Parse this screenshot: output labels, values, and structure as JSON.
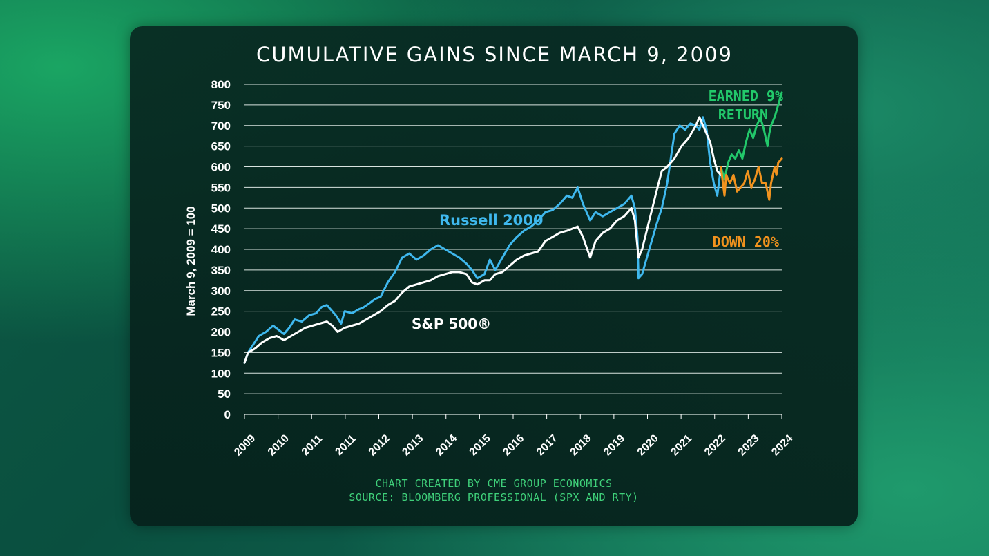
{
  "colors": {
    "russell": "#3fb8ee",
    "sp500": "#ffffff",
    "earned": "#22c86a",
    "down": "#f0921e",
    "grid": "#d9e4e0",
    "footer": "#3fd07a"
  },
  "chart_data": {
    "type": "line",
    "title": "CUMULATIVE GAINS SINCE MARCH 9, 2009",
    "ylabel": "March 9, 2009 = 100",
    "xlabel": "",
    "ylim": [
      0,
      800
    ],
    "yticks": [
      0,
      50,
      100,
      150,
      200,
      250,
      300,
      350,
      400,
      450,
      500,
      550,
      600,
      650,
      700,
      750,
      800
    ],
    "xlim": [
      2009.2,
      2024.2
    ],
    "xtick_labels": [
      "2009",
      "2010",
      "2011",
      "2011",
      "2012",
      "2013",
      "2014",
      "2015",
      "2016",
      "2017",
      "2018",
      "2019",
      "2020",
      "2021",
      "2022",
      "2023",
      "2024"
    ],
    "grid": true,
    "series": [
      {
        "name": "Russell 2000",
        "color": "#3fb8ee",
        "x": [
          2009.2,
          2009.3,
          2009.45,
          2009.6,
          2009.8,
          2010.0,
          2010.15,
          2010.3,
          2010.45,
          2010.6,
          2010.8,
          2011.0,
          2011.2,
          2011.35,
          2011.5,
          2011.6,
          2011.75,
          2011.9,
          2012.0,
          2012.2,
          2012.4,
          2012.5,
          2012.7,
          2012.85,
          2013.0,
          2013.2,
          2013.4,
          2013.6,
          2013.8,
          2014.0,
          2014.2,
          2014.4,
          2014.6,
          2014.8,
          2015.0,
          2015.2,
          2015.4,
          2015.55,
          2015.7,
          2015.9,
          2016.05,
          2016.2,
          2016.4,
          2016.6,
          2016.8,
          2017.0,
          2017.2,
          2017.4,
          2017.6,
          2017.8,
          2018.0,
          2018.2,
          2018.35,
          2018.5,
          2018.65,
          2018.85,
          2019.0,
          2019.2,
          2019.4,
          2019.6,
          2019.8,
          2020.0,
          2020.1,
          2020.17,
          2020.2,
          2020.3,
          2020.5,
          2020.7,
          2020.85,
          2021.0,
          2021.1,
          2021.2,
          2021.35,
          2021.5,
          2021.65,
          2021.8,
          2021.9,
          2022.0,
          2022.1,
          2022.2,
          2022.3,
          2022.4,
          2022.5
        ],
        "y": [
          125,
          150,
          170,
          190,
          200,
          215,
          205,
          195,
          210,
          230,
          225,
          240,
          245,
          260,
          265,
          255,
          240,
          220,
          250,
          245,
          255,
          258,
          270,
          280,
          285,
          320,
          345,
          380,
          390,
          375,
          385,
          400,
          410,
          400,
          390,
          380,
          365,
          350,
          330,
          340,
          375,
          350,
          380,
          410,
          430,
          445,
          455,
          470,
          490,
          495,
          510,
          530,
          525,
          550,
          510,
          470,
          490,
          480,
          490,
          500,
          510,
          530,
          500,
          430,
          330,
          340,
          400,
          460,
          500,
          560,
          620,
          680,
          700,
          690,
          705,
          700,
          690,
          720,
          690,
          610,
          560,
          530,
          600
        ]
      },
      {
        "name": "S&P 500®",
        "color": "#ffffff",
        "x": [
          2009.2,
          2009.3,
          2009.5,
          2009.7,
          2009.9,
          2010.1,
          2010.3,
          2010.5,
          2010.7,
          2010.9,
          2011.1,
          2011.3,
          2011.5,
          2011.65,
          2011.8,
          2012.0,
          2012.2,
          2012.4,
          2012.6,
          2012.8,
          2013.0,
          2013.2,
          2013.4,
          2013.6,
          2013.8,
          2014.0,
          2014.2,
          2014.4,
          2014.6,
          2014.8,
          2015.0,
          2015.2,
          2015.4,
          2015.55,
          2015.7,
          2015.9,
          2016.05,
          2016.2,
          2016.4,
          2016.6,
          2016.8,
          2017.0,
          2017.2,
          2017.4,
          2017.6,
          2017.8,
          2018.0,
          2018.2,
          2018.35,
          2018.5,
          2018.65,
          2018.85,
          2019.0,
          2019.2,
          2019.4,
          2019.6,
          2019.8,
          2020.0,
          2020.1,
          2020.2,
          2020.3,
          2020.5,
          2020.7,
          2020.85,
          2021.0,
          2021.2,
          2021.4,
          2021.6,
          2021.8,
          2021.9,
          2022.0,
          2022.1,
          2022.2,
          2022.3,
          2022.4,
          2022.5
        ],
        "y": [
          125,
          150,
          160,
          175,
          185,
          190,
          180,
          190,
          200,
          210,
          215,
          220,
          225,
          215,
          200,
          210,
          215,
          220,
          230,
          240,
          250,
          265,
          275,
          295,
          310,
          315,
          320,
          325,
          335,
          340,
          345,
          345,
          340,
          320,
          315,
          325,
          325,
          340,
          345,
          360,
          375,
          385,
          390,
          395,
          420,
          430,
          440,
          445,
          450,
          455,
          430,
          380,
          420,
          440,
          450,
          470,
          480,
          500,
          470,
          380,
          400,
          470,
          540,
          590,
          600,
          620,
          650,
          670,
          700,
          720,
          700,
          680,
          660,
          620,
          590,
          580
        ]
      },
      {
        "name": "EARNED 9% RETURN",
        "color": "#22c86a",
        "x": [
          2022.5,
          2022.6,
          2022.7,
          2022.8,
          2022.9,
          2023.0,
          2023.1,
          2023.2,
          2023.3,
          2023.4,
          2023.5,
          2023.6,
          2023.7,
          2023.8,
          2023.85,
          2023.9,
          2024.0,
          2024.1,
          2024.2
        ],
        "y": [
          600,
          570,
          610,
          630,
          620,
          640,
          620,
          660,
          690,
          670,
          700,
          720,
          690,
          650,
          680,
          700,
          720,
          750,
          780
        ]
      },
      {
        "name": "DOWN 20%",
        "color": "#f0921e",
        "x": [
          2022.5,
          2022.6,
          2022.65,
          2022.75,
          2022.85,
          2022.95,
          2023.05,
          2023.15,
          2023.25,
          2023.35,
          2023.45,
          2023.55,
          2023.65,
          2023.75,
          2023.85,
          2023.9,
          2024.0,
          2024.05,
          2024.1,
          2024.2
        ],
        "y": [
          600,
          530,
          580,
          560,
          580,
          540,
          550,
          560,
          590,
          550,
          570,
          600,
          560,
          560,
          520,
          560,
          600,
          580,
          610,
          620
        ]
      }
    ],
    "annotations": [
      {
        "text": "Russell 2000",
        "color": "#3fb8ee"
      },
      {
        "text": "S&P 500®",
        "color": "#ffffff"
      },
      {
        "text_lines": [
          "EARNED 9%",
          "RETURN"
        ],
        "color": "#22c86a"
      },
      {
        "text": "DOWN 20%",
        "color": "#f0921e"
      }
    ]
  },
  "footer": {
    "line1": "CHART CREATED BY CME GROUP ECONOMICS",
    "line2": "SOURCE: BLOOMBERG PROFESSIONAL (SPX AND RTY)"
  }
}
